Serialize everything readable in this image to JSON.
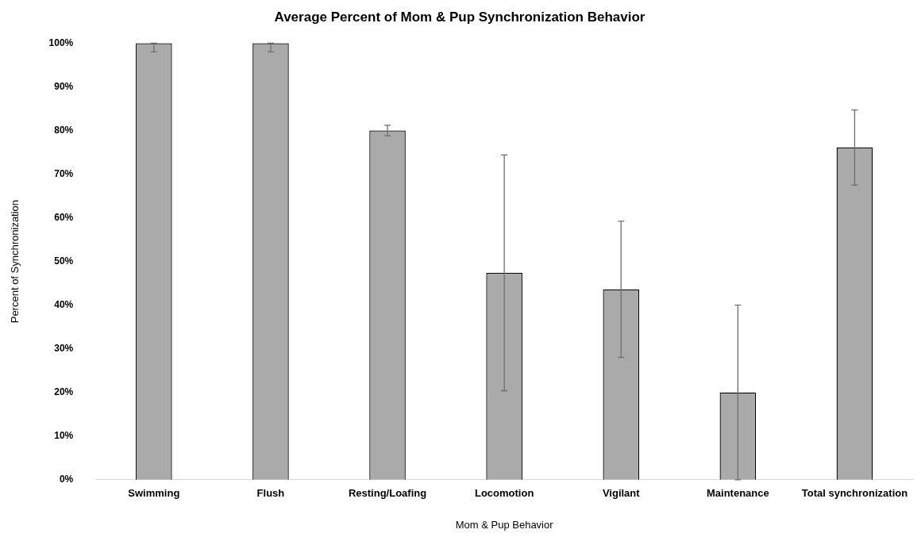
{
  "chart_data": {
    "type": "bar",
    "title": "Average Percent of Mom & Pup Synchronization Behavior",
    "xlabel": "Mom & Pup Behavior",
    "ylabel": "Percent of Synchronization",
    "categories": [
      "Swimming",
      "Flush",
      "Resting/Loafing",
      "Locomotion",
      "Vigilant",
      "Maintenance",
      "Total synchronization"
    ],
    "values": [
      100,
      100,
      80,
      47.4,
      43.6,
      20,
      76.1
    ],
    "errors": [
      [
        98,
        100
      ],
      [
        98,
        100
      ],
      1.2,
      27,
      15.6,
      20,
      8.6
    ],
    "color": "#aaaaaa",
    "ylim": [
      0,
      100
    ],
    "yticks": [
      {
        "value": 0,
        "label": "0%"
      },
      {
        "value": 10,
        "label": "10%"
      },
      {
        "value": 20,
        "label": "20%"
      },
      {
        "value": 30,
        "label": "30%"
      },
      {
        "value": 40,
        "label": "40%"
      },
      {
        "value": 50,
        "label": "50%"
      },
      {
        "value": 60,
        "label": "60%"
      },
      {
        "value": 70,
        "label": "70%"
      },
      {
        "value": 80,
        "label": "80%"
      },
      {
        "value": 90,
        "label": "90%"
      },
      {
        "value": 100,
        "label": "100%"
      }
    ],
    "grid": false,
    "legend": false
  }
}
